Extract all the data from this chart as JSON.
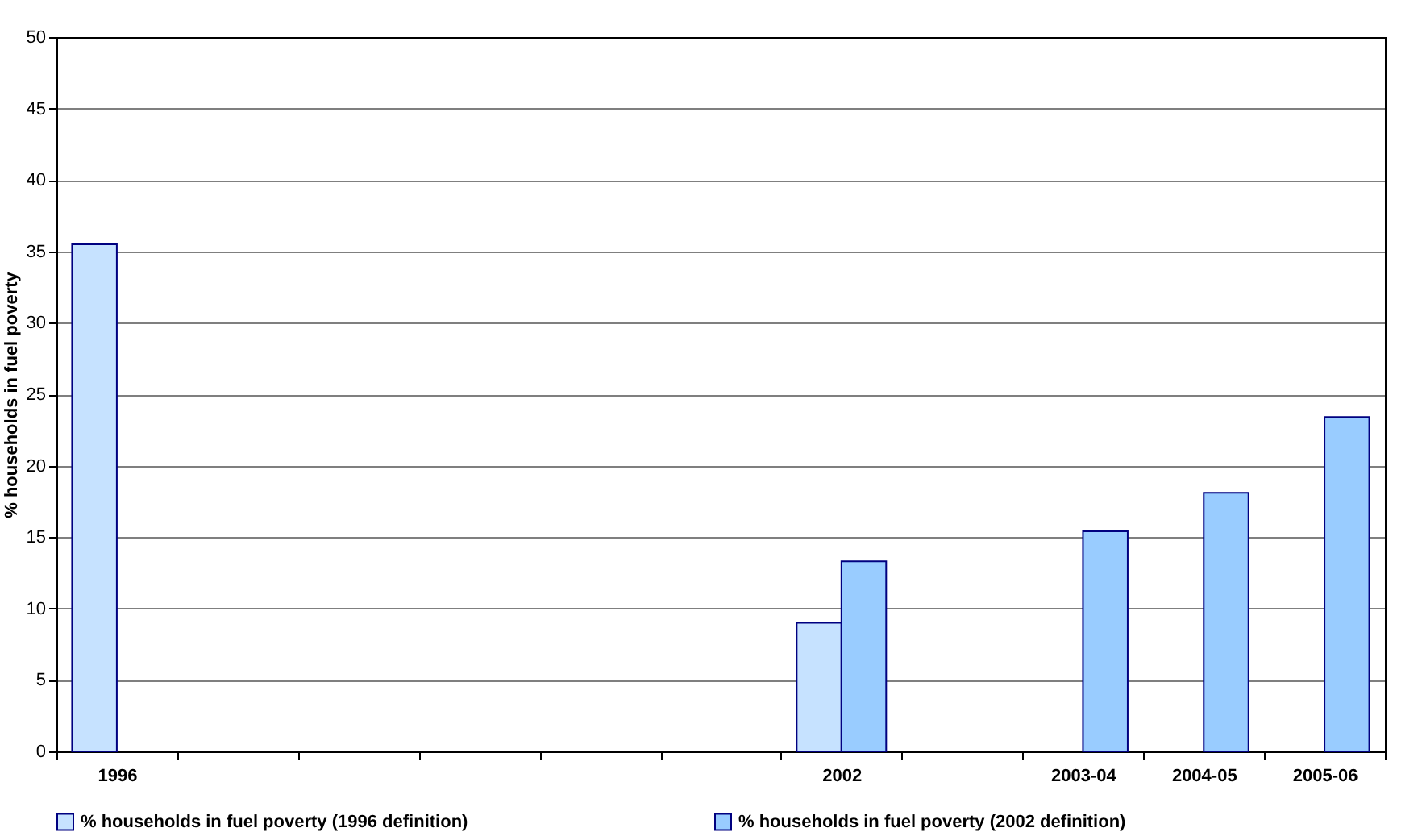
{
  "chart_data": {
    "type": "bar",
    "ylabel": "% households in fuel poverty",
    "categories": [
      "1996",
      null,
      null,
      null,
      null,
      null,
      "2002",
      null,
      "2003-04",
      "2004-05",
      "2005-06"
    ],
    "series": [
      {
        "name": "% households in fuel poverty (1996 definition)",
        "color": "#c6e2ff",
        "values": [
          35.5,
          null,
          null,
          null,
          null,
          null,
          9.0,
          null,
          null,
          null,
          null
        ]
      },
      {
        "name": "% households in fuel poverty (2002 definition)",
        "color": "#99ccff",
        "values": [
          null,
          null,
          null,
          null,
          null,
          null,
          13.3,
          null,
          15.4,
          18.1,
          23.4
        ]
      }
    ],
    "ylim": [
      0,
      50
    ],
    "yticks": [
      0,
      5,
      10,
      15,
      20,
      25,
      30,
      35,
      40,
      45,
      50
    ],
    "grid": "y",
    "legend": "bottom"
  }
}
